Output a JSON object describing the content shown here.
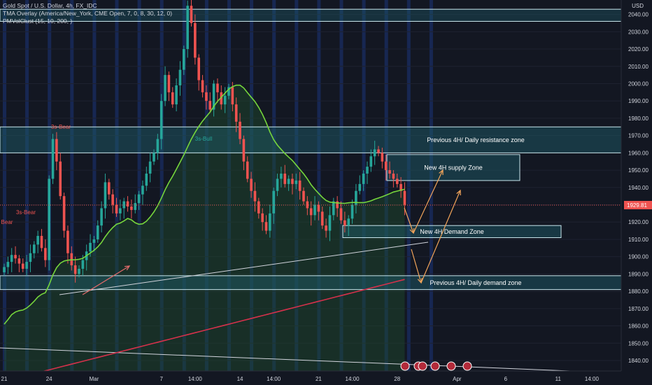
{
  "legend": {
    "line1": "Gold Spot / U.S. Dollar, 4h, FX_IDC",
    "line2": "TMA Overlay (America/New_York, CME Open, 7, 0, 8, 30, 12, 0)",
    "line3": "PMVolClust (15, 10, 200, )"
  },
  "currency": "USD",
  "chart_data": {
    "type": "candlestick",
    "title": "Gold Spot / U.S. Dollar, 4h, FX_IDC",
    "ylim": [
      1835,
      2043
    ],
    "y_ticks": [
      1840,
      1850,
      1860,
      1870,
      1880,
      1890,
      1900,
      1910,
      1920,
      1930,
      1940,
      1950,
      1960,
      1970,
      1980,
      1990,
      2000,
      2010,
      2020,
      2030,
      2040
    ],
    "x_ticks": [
      {
        "label": "21",
        "i": 0
      },
      {
        "label": "24",
        "i": 12
      },
      {
        "label": "Mar",
        "i": 24
      },
      {
        "label": "7",
        "i": 42
      },
      {
        "label": "14:00",
        "i": 51
      },
      {
        "label": "14",
        "i": 63
      },
      {
        "label": "14:00",
        "i": 72
      },
      {
        "label": "21",
        "i": 84
      },
      {
        "label": "14:00",
        "i": 93
      },
      {
        "label": "28",
        "i": 105
      },
      {
        "label": "Apr",
        "i": 121
      },
      {
        "label": "6",
        "i": 134
      },
      {
        "label": "11",
        "i": 148
      },
      {
        "label": "14:00",
        "i": 157
      }
    ],
    "last_price": 1929.81,
    "last_price_label": "1929.81",
    "closes": [
      1894,
      1897,
      1901,
      1899,
      1896,
      1893,
      1897,
      1902,
      1907,
      1912,
      1905,
      1898,
      1945,
      1968,
      1955,
      1935,
      1915,
      1902,
      1895,
      1890,
      1893,
      1898,
      1903,
      1908,
      1910,
      1918,
      1928,
      1943,
      1936,
      1930,
      1925,
      1928,
      1932,
      1929,
      1927,
      1931,
      1936,
      1941,
      1948,
      1955,
      1960,
      1968,
      1990,
      2005,
      1995,
      1988,
      1999,
      2008,
      2020,
      2045,
      2035,
      2015,
      2002,
      1995,
      1990,
      1985,
      2000,
      1995,
      1988,
      1993,
      1998,
      1988,
      1978,
      1968,
      1955,
      1945,
      1938,
      1932,
      1925,
      1920,
      1915,
      1925,
      1938,
      1945,
      1948,
      1942,
      1945,
      1942,
      1944,
      1938,
      1932,
      1928,
      1924,
      1930,
      1926,
      1918,
      1915,
      1924,
      1932,
      1928,
      1921,
      1918,
      1922,
      1930,
      1938,
      1942,
      1948,
      1952,
      1958,
      1962,
      1960,
      1955,
      1950,
      1948,
      1945,
      1942,
      1938,
      1930
    ],
    "zones": [
      {
        "label": "Previous 4H/ Daily resistance zone",
        "low": 1960,
        "high": 1975
      },
      {
        "label": "New 4H supply Zone",
        "low": 1944,
        "high": 1959
      },
      {
        "label": "New 4H Demand Zone",
        "low": 1911,
        "high": 1918
      },
      {
        "label": "Previous 4H/ Daily demand zone",
        "low": 1881,
        "high": 1889
      }
    ],
    "annotations": [
      "3s-Bear",
      "3s-Bear",
      "3s-Bull",
      "Bear"
    ],
    "colors": {
      "up": "#26a69a",
      "down": "#ef5350",
      "ma_green": "#76d63c",
      "ma_red": "#d5314b",
      "zone": "#4dd0e1",
      "arrow": "#f2a45a",
      "band": "#2962ff",
      "background": "#131722"
    }
  }
}
